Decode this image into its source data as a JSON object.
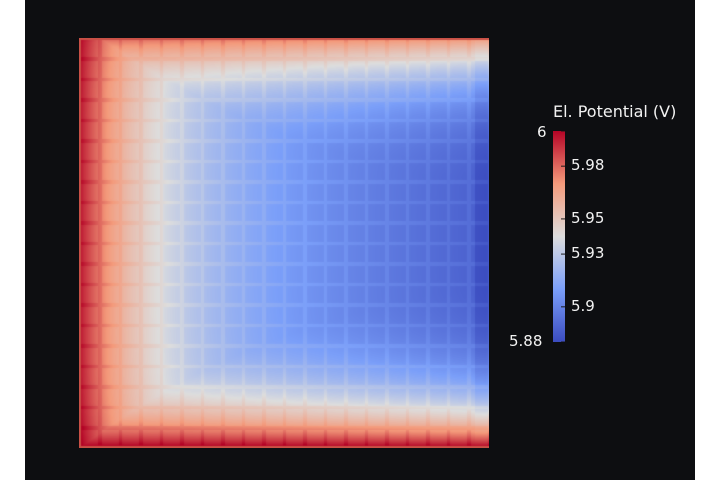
{
  "viewport": {
    "background": "#0d0e11",
    "field": {
      "description_colormap": "cool-to-warm",
      "value_min": 5.88,
      "value_max": 6.0,
      "cells_x": 20,
      "cells_y": 20,
      "low_color": "#3b4cc0",
      "mid_color": "#dddddd",
      "high_color": "#b40426"
    }
  },
  "legend": {
    "title": "El. Potential (V)",
    "ticks": [
      {
        "label": "6",
        "value": 6.0
      },
      {
        "label": "5.98",
        "value": 5.98
      },
      {
        "label": "5.95",
        "value": 5.95
      },
      {
        "label": "5.93",
        "value": 5.93
      },
      {
        "label": "5.9",
        "value": 5.9
      },
      {
        "label": "5.88",
        "value": 5.88
      }
    ]
  }
}
